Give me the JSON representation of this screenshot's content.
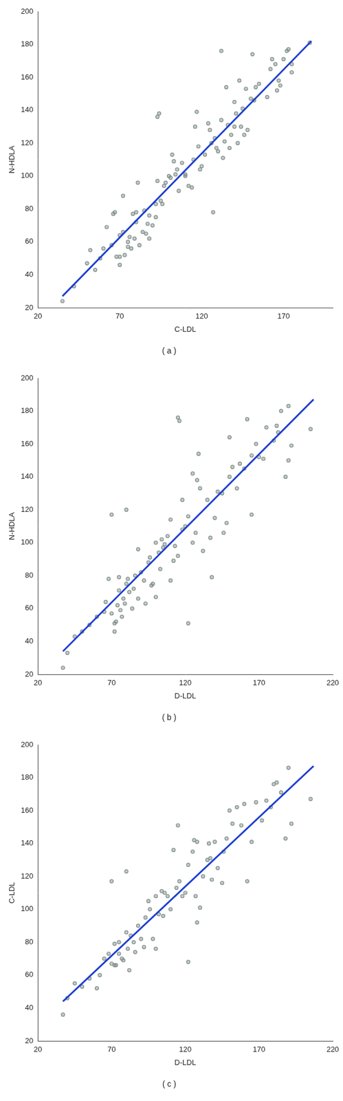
{
  "chart_data": [
    {
      "type": "scatter",
      "title": "( a )",
      "x_label": "C-LDL",
      "y_label": "N-HDLA",
      "xlim": [
        20,
        200
      ],
      "xticks": [
        20,
        70,
        120,
        170
      ],
      "ylim": [
        20,
        200
      ],
      "yticks": [
        20,
        40,
        60,
        80,
        100,
        120,
        140,
        160,
        180,
        200
      ],
      "grid": false,
      "series": [
        {
          "type": "scatter",
          "marker": "circle",
          "color": "#7d8c88",
          "x": [
            35,
            42,
            50,
            52,
            55,
            58,
            60,
            62,
            65,
            66,
            67,
            68,
            70,
            70,
            70,
            72,
            72,
            73,
            75,
            75,
            76,
            77,
            78,
            79,
            80,
            80,
            81,
            82,
            84,
            85,
            86,
            87,
            88,
            88,
            90,
            92,
            92,
            93,
            93,
            94,
            95,
            96,
            97,
            98,
            100,
            101,
            102,
            103,
            104,
            105,
            106,
            108,
            110,
            110,
            112,
            114,
            115,
            116,
            117,
            118,
            119,
            120,
            122,
            124,
            125,
            126,
            127,
            128,
            129,
            130,
            132,
            132,
            133,
            134,
            135,
            136,
            137,
            138,
            140,
            140,
            141,
            142,
            143,
            144,
            145,
            146,
            147,
            148,
            150,
            151,
            152,
            153,
            155,
            160,
            162,
            163,
            165,
            166,
            167,
            168,
            170,
            172,
            173,
            175,
            175,
            186
          ],
          "values": [
            24,
            33,
            47,
            55,
            43,
            50,
            56,
            69,
            58,
            77,
            78,
            51,
            51,
            46,
            64,
            88,
            66,
            52,
            60,
            57,
            63,
            56,
            77,
            62,
            78,
            72,
            96,
            58,
            66,
            79,
            65,
            71,
            62,
            76,
            70,
            75,
            83,
            97,
            136,
            138,
            85,
            83,
            94,
            96,
            100,
            99,
            113,
            109,
            101,
            104,
            91,
            108,
            101,
            100,
            94,
            93,
            110,
            130,
            139,
            118,
            104,
            106,
            113,
            132,
            128,
            120,
            78,
            123,
            117,
            115,
            134,
            176,
            111,
            121,
            154,
            131,
            117,
            125,
            130,
            145,
            138,
            120,
            158,
            130,
            141,
            125,
            153,
            128,
            147,
            174,
            146,
            154,
            156,
            148,
            165,
            171,
            168,
            152,
            158,
            155,
            171,
            176,
            177,
            168,
            163,
            181
          ]
        },
        {
          "type": "line",
          "line_style": "solid",
          "color": "#1c3fd0",
          "x": [
            35,
            187
          ],
          "values": [
            27,
            182
          ]
        }
      ]
    },
    {
      "type": "scatter",
      "title": "( b )",
      "x_label": "D-LDL",
      "y_label": "N-HDLA",
      "xlim": [
        20,
        220
      ],
      "xticks": [
        20,
        70,
        120,
        170,
        220
      ],
      "ylim": [
        20,
        200
      ],
      "yticks": [
        20,
        40,
        60,
        80,
        100,
        120,
        140,
        160,
        180,
        200
      ],
      "grid": false,
      "series": [
        {
          "type": "scatter",
          "marker": "circle",
          "color": "#7d8c88",
          "x": [
            37,
            40,
            45,
            50,
            55,
            60,
            65,
            66,
            68,
            70,
            70,
            72,
            72,
            73,
            74,
            75,
            75,
            76,
            77,
            78,
            79,
            80,
            80,
            81,
            82,
            84,
            85,
            86,
            88,
            88,
            90,
            92,
            93,
            95,
            96,
            97,
            98,
            100,
            100,
            102,
            103,
            104,
            105,
            106,
            108,
            110,
            110,
            112,
            113,
            115,
            115,
            116,
            118,
            118,
            120,
            122,
            122,
            125,
            125,
            127,
            128,
            129,
            130,
            132,
            135,
            137,
            138,
            140,
            142,
            145,
            146,
            148,
            150,
            150,
            152,
            155,
            157,
            160,
            162,
            165,
            165,
            168,
            170,
            173,
            175,
            180,
            182,
            183,
            185,
            188,
            190,
            190,
            192,
            205
          ],
          "values": [
            24,
            33,
            43,
            46,
            50,
            55,
            58,
            64,
            78,
            117,
            57,
            51,
            46,
            52,
            62,
            71,
            79,
            59,
            55,
            66,
            63,
            75,
            120,
            78,
            70,
            60,
            72,
            80,
            96,
            66,
            82,
            77,
            63,
            88,
            91,
            74,
            75,
            100,
            67,
            94,
            84,
            102,
            97,
            99,
            104,
            114,
            77,
            89,
            98,
            92,
            176,
            174,
            108,
            126,
            110,
            116,
            51,
            100,
            142,
            106,
            138,
            154,
            133,
            95,
            126,
            103,
            79,
            115,
            131,
            130,
            106,
            112,
            140,
            164,
            146,
            133,
            148,
            145,
            175,
            117,
            153,
            160,
            152,
            151,
            170,
            162,
            171,
            167,
            180,
            140,
            150,
            183,
            159,
            169
          ]
        },
        {
          "type": "line",
          "line_style": "solid",
          "color": "#1c3fd0",
          "x": [
            37,
            207
          ],
          "values": [
            34,
            187
          ]
        }
      ]
    },
    {
      "type": "scatter",
      "title": "( c )",
      "x_label": "D-LDL",
      "y_label": "C-LDL",
      "xlim": [
        20,
        220
      ],
      "xticks": [
        20,
        70,
        120,
        170,
        220
      ],
      "ylim": [
        20,
        200
      ],
      "yticks": [
        20,
        40,
        60,
        80,
        100,
        120,
        140,
        160,
        180,
        200
      ],
      "grid": false,
      "series": [
        {
          "type": "scatter",
          "marker": "circle",
          "color": "#7d8c88",
          "x": [
            37,
            40,
            45,
            50,
            55,
            60,
            62,
            65,
            68,
            70,
            70,
            72,
            72,
            73,
            75,
            75,
            77,
            78,
            80,
            80,
            81,
            82,
            83,
            85,
            86,
            88,
            90,
            92,
            93,
            95,
            96,
            98,
            100,
            100,
            102,
            104,
            105,
            106,
            108,
            110,
            112,
            114,
            115,
            116,
            118,
            120,
            122,
            122,
            125,
            126,
            127,
            128,
            128,
            130,
            132,
            135,
            136,
            137,
            138,
            140,
            142,
            145,
            146,
            148,
            150,
            152,
            155,
            158,
            160,
            162,
            165,
            168,
            172,
            175,
            178,
            180,
            182,
            185,
            188,
            190,
            192,
            205
          ],
          "values": [
            36,
            46,
            55,
            53,
            58,
            52,
            60,
            70,
            73,
            117,
            67,
            79,
            66,
            66,
            80,
            73,
            70,
            69,
            86,
            123,
            76,
            63,
            84,
            80,
            74,
            90,
            82,
            77,
            95,
            105,
            100,
            82,
            108,
            76,
            97,
            111,
            96,
            110,
            108,
            100,
            136,
            113,
            151,
            117,
            108,
            110,
            127,
            68,
            135,
            142,
            108,
            92,
            141,
            101,
            120,
            130,
            140,
            131,
            118,
            141,
            125,
            116,
            135,
            143,
            160,
            152,
            162,
            151,
            164,
            117,
            141,
            165,
            154,
            166,
            162,
            176,
            177,
            171,
            143,
            186,
            152,
            167
          ]
        },
        {
          "type": "line",
          "line_style": "solid",
          "color": "#1c3fd0",
          "x": [
            37,
            207
          ],
          "values": [
            44,
            187
          ]
        }
      ]
    }
  ]
}
